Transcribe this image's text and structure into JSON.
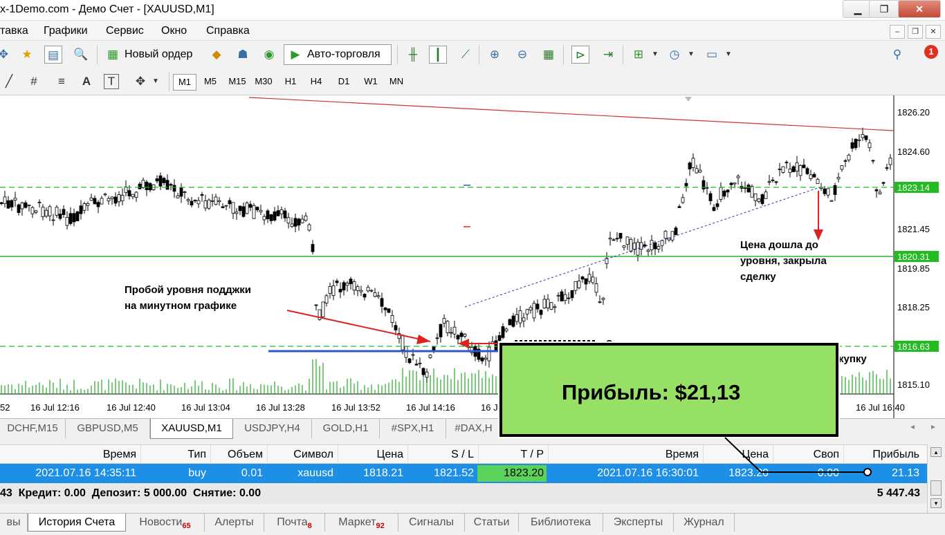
{
  "window": {
    "title": "x-1Demo.com - Демо Счет - [XAUUSD,M1]",
    "minimize": "▁",
    "restore": "❐",
    "close": "✕"
  },
  "menu": [
    "тавка",
    "Графики",
    "Сервис",
    "Окно",
    "Справка"
  ],
  "mdi_buttons": [
    "–",
    "❐",
    "✕"
  ],
  "toolbar": {
    "new_order": "Новый ордер",
    "auto_trading": "Авто-торговля",
    "notification_count": "1"
  },
  "timeframes": [
    "M1",
    "M5",
    "M15",
    "M30",
    "H1",
    "H4",
    "D1",
    "W1",
    "MN"
  ],
  "active_timeframe": "M1",
  "drawing_tools": {
    "text_label": "A",
    "text_tool": "T"
  },
  "chart": {
    "price_labels": [
      "1826.20",
      "1824.60",
      "1821.45",
      "1819.85",
      "1818.25",
      "1815.10"
    ],
    "highlighted_prices": [
      {
        "value": "1823.14",
        "color": "#22bb22"
      },
      {
        "value": "1820.31",
        "color": "#22bb22"
      },
      {
        "value": "1816.63",
        "color": "#22bb22"
      }
    ],
    "time_labels": [
      "52",
      "16 Jul 12:16",
      "16 Jul 12:40",
      "16 Jul 13:04",
      "16 Jul 13:28",
      "16 Jul 13:52",
      "16 Jul 14:16",
      "16 J",
      "16 Jul 16:40"
    ],
    "annotations": {
      "support_break": "Пробой уровня подджки\nна минутном графике",
      "price_reached": "Цена дошла  до\nуровня, закрыла\nсделку",
      "consolidation": "Закрепление цены выше уровня",
      "buy_fragment": "купку"
    }
  },
  "profit_callout": "Прибыль: $21,13",
  "chart_tabs": [
    "DCHF,M15",
    "GBPUSD,M5",
    "XAUUSD,M1",
    "USDJPY,H4",
    "GOLD,H1",
    "#SPX,H1",
    "#DAX,H"
  ],
  "active_chart_tab": "XAUUSD,M1",
  "terminal": {
    "columns": [
      "Время",
      "Тип",
      "Объем",
      "Символ",
      "Цена",
      "S / L",
      "T / P",
      "Время",
      "Цена",
      "Своп",
      "Прибыль"
    ],
    "row": {
      "open_time": "2021.07.16 14:35:11",
      "type": "buy",
      "volume": "0.01",
      "symbol": "xauusd",
      "open_price": "1818.21",
      "sl": "1821.52",
      "tp": "1823.20",
      "close_time": "2021.07.16 16:30:01",
      "close_price": "1823.20",
      "swap": "0.00",
      "profit": "21.13"
    },
    "summary": "43  Кредит: 0.00  Депозит: 5 000.00  Снятие: 0.00",
    "balance": "5 447.43"
  },
  "bottom_tabs": [
    {
      "label": "вы",
      "badge": ""
    },
    {
      "label": "История Счета",
      "badge": ""
    },
    {
      "label": "Новости",
      "badge": "65"
    },
    {
      "label": "Алерты",
      "badge": ""
    },
    {
      "label": "Почта",
      "badge": "8"
    },
    {
      "label": "Маркет",
      "badge": "92"
    },
    {
      "label": "Сигналы",
      "badge": ""
    },
    {
      "label": "Статьи",
      "badge": ""
    },
    {
      "label": "Библиотека",
      "badge": ""
    },
    {
      "label": "Эксперты",
      "badge": ""
    },
    {
      "label": "Журнал",
      "badge": ""
    }
  ],
  "colors": {
    "selected_row": "#1e8fe6",
    "tp_highlight": "#5bd35b",
    "profit_box": "#96e065",
    "resistance_line": "#cc3333",
    "support_line": "#3355cc",
    "level_line": "#22bb22"
  }
}
